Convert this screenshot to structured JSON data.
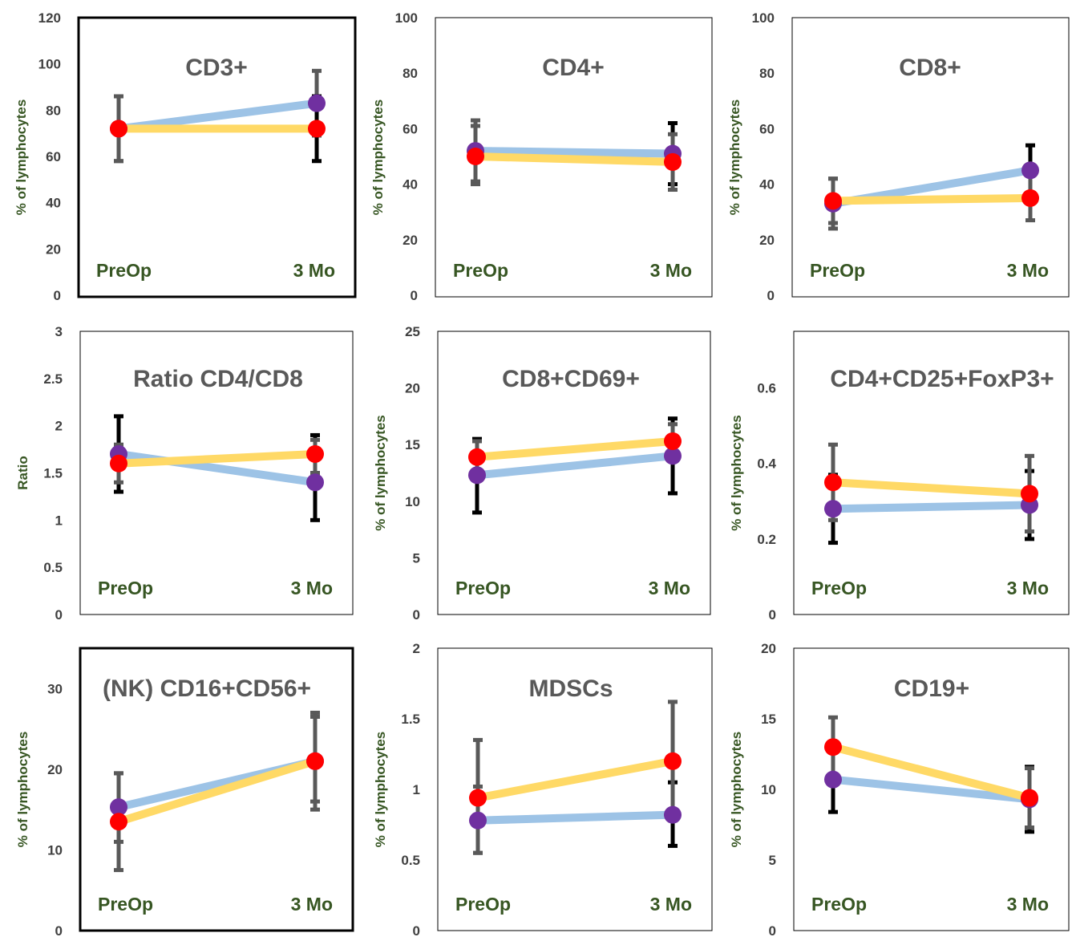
{
  "colors": {
    "series_line_blue": "#9dc3e6",
    "series_line_yellow": "#ffd966",
    "marker_purple": "#7030a0",
    "marker_red": "#ff0000",
    "error_gray": "#595959",
    "error_black": "#000000",
    "label_green": "#375623",
    "title_gray": "#595959"
  },
  "chart_data": [
    {
      "type": "line",
      "title": "CD3+",
      "ylabel": "% of lymphocytes",
      "categories": [
        "PreOp",
        "3 Mo"
      ],
      "ylim": [
        0,
        120
      ],
      "yticks": [
        "0",
        "20",
        "40",
        "60",
        "80",
        "100",
        "120"
      ],
      "series": [
        {
          "values": [
            72,
            83
          ],
          "error_low": [
            58,
            69
          ],
          "error_high": [
            86,
            97
          ]
        },
        {
          "values": [
            72,
            72
          ],
          "error_low": [
            58,
            58
          ],
          "error_high": [
            86,
            86
          ]
        }
      ]
    },
    {
      "type": "line",
      "title": "CD4+",
      "ylabel": "% of lymphocytes",
      "categories": [
        "PreOp",
        "3 Mo"
      ],
      "ylim": [
        0,
        100
      ],
      "yticks": [
        "0",
        "20",
        "40",
        "60",
        "80",
        "100"
      ],
      "series": [
        {
          "values": [
            52,
            51
          ],
          "error_low": [
            41,
            40
          ],
          "error_high": [
            63,
            62
          ]
        },
        {
          "values": [
            50,
            48
          ],
          "error_low": [
            40,
            38
          ],
          "error_high": [
            61,
            58
          ]
        }
      ]
    },
    {
      "type": "line",
      "title": "CD8+",
      "ylabel": "% of lymphocytes",
      "categories": [
        "PreOp",
        "3 Mo"
      ],
      "ylim": [
        0,
        100
      ],
      "yticks": [
        "0",
        "20",
        "40",
        "60",
        "80",
        "100"
      ],
      "series": [
        {
          "values": [
            33,
            45
          ],
          "error_low": [
            24,
            36
          ],
          "error_high": [
            42,
            54
          ]
        },
        {
          "values": [
            34,
            35
          ],
          "error_low": [
            26,
            27
          ],
          "error_high": [
            42,
            44
          ]
        }
      ]
    },
    {
      "type": "line",
      "title": "Ratio CD4/CD8",
      "ylabel": "Ratio",
      "categories": [
        "PreOp",
        "3 Mo"
      ],
      "ylim": [
        0,
        3
      ],
      "yticks": [
        "0",
        "0.5",
        "1",
        "1.5",
        "2",
        "2.5",
        "3"
      ],
      "series": [
        {
          "values": [
            1.7,
            1.4
          ],
          "error_low": [
            1.3,
            1.0
          ],
          "error_high": [
            2.1,
            1.9
          ]
        },
        {
          "values": [
            1.6,
            1.7
          ],
          "error_low": [
            1.4,
            1.5
          ],
          "error_high": [
            1.8,
            1.85
          ]
        }
      ]
    },
    {
      "type": "line",
      "title": "CD8+CD69+",
      "ylabel": "% of lymphocytes",
      "categories": [
        "PreOp",
        "3 Mo"
      ],
      "ylim": [
        0,
        25
      ],
      "yticks": [
        "0",
        "5",
        "10",
        "15",
        "20",
        "25"
      ],
      "series": [
        {
          "values": [
            12.3,
            14
          ],
          "error_low": [
            9,
            10.7
          ],
          "error_high": [
            15.5,
            17.3
          ]
        },
        {
          "values": [
            13.9,
            15.3
          ],
          "error_low": [
            12.5,
            13.8
          ],
          "error_high": [
            15.3,
            16.8
          ]
        }
      ]
    },
    {
      "type": "line",
      "title": "CD4+CD25+FoxP3+",
      "ylabel": "% of lymphocytes",
      "categories": [
        "PreOp",
        "3 Mo"
      ],
      "ylim": [
        0,
        0.75
      ],
      "yticks": [
        "0",
        "0.2",
        "0.4",
        "0.6"
      ],
      "series": [
        {
          "values": [
            0.28,
            0.29
          ],
          "error_low": [
            0.19,
            0.2
          ],
          "error_high": [
            0.37,
            0.38
          ]
        },
        {
          "values": [
            0.35,
            0.32
          ],
          "error_low": [
            0.25,
            0.22
          ],
          "error_high": [
            0.45,
            0.42
          ]
        }
      ]
    },
    {
      "type": "line",
      "title": "(NK) CD16+CD56+",
      "ylabel": "% of lymphocytes",
      "categories": [
        "PreOp",
        "3 Mo"
      ],
      "ylim": [
        0,
        35
      ],
      "yticks": [
        "0",
        "10",
        "20",
        "30"
      ],
      "series": [
        {
          "values": [
            15.3,
            21
          ],
          "error_low": [
            11,
            16
          ],
          "error_high": [
            19.5,
            26.5
          ]
        },
        {
          "values": [
            13.5,
            21
          ],
          "error_low": [
            7.5,
            15
          ],
          "error_high": [
            19.5,
            27
          ]
        }
      ]
    },
    {
      "type": "line",
      "title": "MDSCs",
      "ylabel": "% of lymphocytes",
      "categories": [
        "PreOp",
        "3 Mo"
      ],
      "ylim": [
        0,
        2
      ],
      "yticks": [
        "0",
        "0.5",
        "1",
        "1.5",
        "2"
      ],
      "series": [
        {
          "values": [
            0.78,
            0.82
          ],
          "error_low": [
            0.55,
            0.6
          ],
          "error_high": [
            1.02,
            1.05
          ]
        },
        {
          "values": [
            0.94,
            1.2
          ],
          "error_low": [
            0.55,
            0.78
          ],
          "error_high": [
            1.35,
            1.62
          ]
        }
      ]
    },
    {
      "type": "line",
      "title": "CD19+",
      "ylabel": "% of lymphocytes",
      "categories": [
        "PreOp",
        "3 Mo"
      ],
      "ylim": [
        0,
        20
      ],
      "yticks": [
        "0",
        "5",
        "10",
        "15",
        "20"
      ],
      "series": [
        {
          "values": [
            10.7,
            9.3
          ],
          "error_low": [
            8.4,
            7
          ],
          "error_high": [
            13,
            11.6
          ]
        },
        {
          "values": [
            13,
            9.4
          ],
          "error_low": [
            10.9,
            7.3
          ],
          "error_high": [
            15.1,
            11.5
          ]
        }
      ]
    }
  ]
}
